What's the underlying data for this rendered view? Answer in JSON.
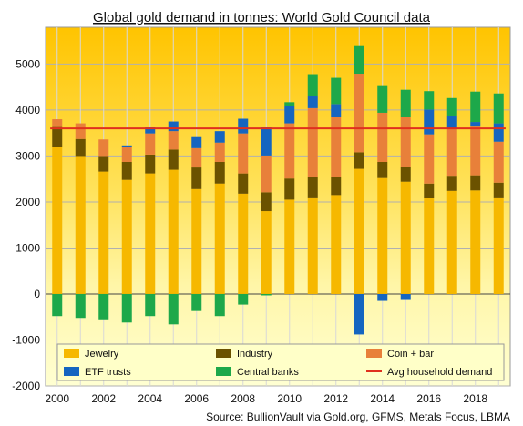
{
  "chart_data": {
    "type": "bar",
    "stacked": true,
    "title": "Global gold demand in tonnes: World Gold Council data",
    "source": "Source: BullionVault via Gold.org, GFMS, Metals Focus, LBMA",
    "x": [
      2000,
      2001,
      2002,
      2003,
      2004,
      2005,
      2006,
      2007,
      2008,
      2009,
      2010,
      2011,
      2012,
      2013,
      2014,
      2015,
      2016,
      2017,
      2018,
      2019
    ],
    "x_tick_labels": [
      "2000",
      "2002",
      "2004",
      "2006",
      "2008",
      "2010",
      "2012",
      "2014",
      "2016",
      "2018"
    ],
    "y_tick_labels": [
      "-2000",
      "-1000",
      "0",
      "1000",
      "2000",
      "3000",
      "4000",
      "5000"
    ],
    "ylim": [
      -2000,
      5800
    ],
    "grid": true,
    "legend_position": "bottom",
    "series": [
      {
        "name": "Jewelry",
        "color": "#F6B800",
        "values": [
          3200,
          3000,
          2660,
          2480,
          2620,
          2700,
          2280,
          2400,
          2180,
          1800,
          2050,
          2100,
          2150,
          2720,
          2520,
          2440,
          2080,
          2240,
          2250,
          2100
        ]
      },
      {
        "name": "Industry",
        "color": "#6B5200",
        "values": [
          450,
          370,
          340,
          390,
          410,
          440,
          470,
          470,
          440,
          410,
          460,
          450,
          400,
          360,
          350,
          330,
          320,
          330,
          330,
          320
        ]
      },
      {
        "name": "Coin + bar",
        "color": "#E8803A",
        "values": [
          150,
          340,
          360,
          320,
          460,
          400,
          420,
          420,
          870,
          800,
          1200,
          1490,
          1300,
          1710,
          1070,
          1090,
          1070,
          1030,
          1080,
          890
        ]
      },
      {
        "name": "ETF trusts",
        "color": "#1565C0",
        "values": [
          0,
          0,
          0,
          40,
          140,
          210,
          260,
          250,
          320,
          620,
          380,
          260,
          280,
          0,
          0,
          0,
          540,
          280,
          80,
          400
        ]
      },
      {
        "name": "Central banks",
        "color": "#1DA84A",
        "values": [
          -480,
          -520,
          -550,
          -620,
          -480,
          -660,
          -370,
          -480,
          -230,
          -30,
          80,
          480,
          570,
          620,
          600,
          580,
          400,
          380,
          660,
          650
        ]
      },
      {
        "name": "Avg household demand",
        "color": "#E0301E",
        "type": "line",
        "value": 3600
      }
    ],
    "negatives": {
      "2013_etf": -880,
      "2014_etf": -150,
      "2015_etf": -130
    }
  }
}
